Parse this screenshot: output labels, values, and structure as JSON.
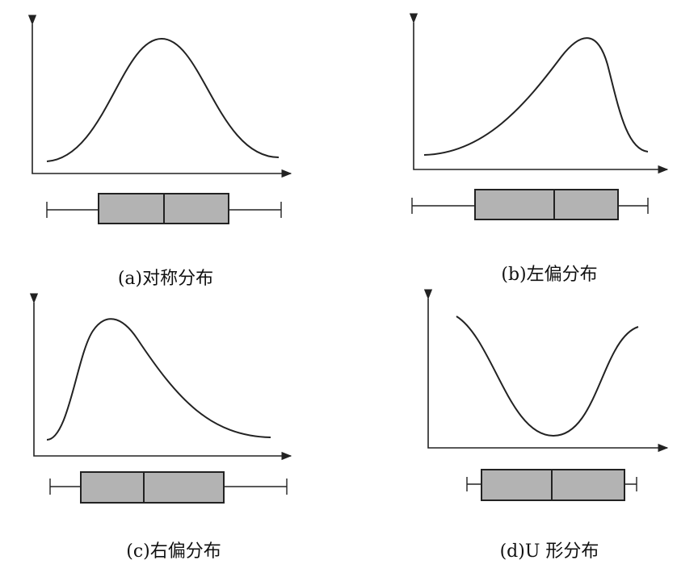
{
  "panels": [
    {
      "caption": "(a)对称分布"
    },
    {
      "caption": "(b)左偏分布"
    },
    {
      "caption": "(c)右偏分布"
    },
    {
      "caption": "(d)U 形分布"
    }
  ]
}
